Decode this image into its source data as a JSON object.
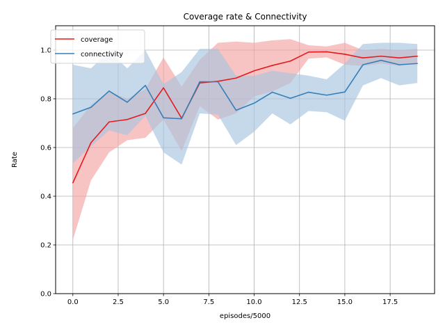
{
  "chart_data": {
    "type": "line",
    "title": "Coverage rate & Connectivity",
    "xlabel": "episodes/5000",
    "ylabel": "Rate",
    "xlim": [
      -0.95,
      19.95
    ],
    "ylim": [
      0,
      1.1
    ],
    "x_ticks": [
      0.0,
      2.5,
      5.0,
      7.5,
      10.0,
      12.5,
      15.0,
      17.5
    ],
    "x_tick_labels": [
      "0.0",
      "2.5",
      "5.0",
      "7.5",
      "10.0",
      "12.5",
      "15.0",
      "17.5"
    ],
    "y_ticks": [
      0.0,
      0.2,
      0.4,
      0.6,
      0.8,
      1.0
    ],
    "y_tick_labels": [
      "0.0",
      "0.2",
      "0.4",
      "0.6",
      "0.8",
      "1.0"
    ],
    "grid": true,
    "legend_position": "top-left",
    "x": [
      0,
      1,
      2,
      3,
      4,
      5,
      6,
      7,
      8,
      9,
      10,
      11,
      12,
      13,
      14,
      15,
      16,
      17,
      18,
      19
    ],
    "series": [
      {
        "name": "coverage",
        "color": "#e41a1c",
        "band_color": "#f4a3a3",
        "values": [
          0.455,
          0.62,
          0.705,
          0.715,
          0.74,
          0.845,
          0.72,
          0.865,
          0.872,
          0.885,
          0.915,
          0.937,
          0.955,
          0.992,
          0.993,
          0.983,
          0.968,
          0.975,
          0.968,
          0.975
        ],
        "lower": [
          0.22,
          0.465,
          0.58,
          0.63,
          0.64,
          0.715,
          0.585,
          0.77,
          0.715,
          0.74,
          0.81,
          0.83,
          0.865,
          0.965,
          0.97,
          0.94,
          0.935,
          0.945,
          0.935,
          0.945
        ],
        "upper": [
          0.68,
          0.775,
          0.83,
          0.8,
          0.84,
          0.97,
          0.85,
          0.96,
          1.03,
          1.035,
          1.03,
          1.04,
          1.045,
          1.02,
          1.015,
          1.03,
          1.0,
          1.005,
          1.0,
          1.005
        ]
      },
      {
        "name": "connectivity",
        "color": "#377eb8",
        "band_color": "#a7c4de",
        "values": [
          0.738,
          0.765,
          0.832,
          0.786,
          0.855,
          0.722,
          0.718,
          0.87,
          0.87,
          0.753,
          0.782,
          0.827,
          0.802,
          0.827,
          0.815,
          0.828,
          0.94,
          0.958,
          0.94,
          0.945
        ],
        "lower": [
          0.535,
          0.605,
          0.67,
          0.65,
          0.73,
          0.58,
          0.53,
          0.74,
          0.735,
          0.61,
          0.665,
          0.74,
          0.695,
          0.75,
          0.745,
          0.71,
          0.855,
          0.885,
          0.855,
          0.865
        ],
        "upper": [
          0.94,
          0.925,
          0.995,
          0.925,
          1.0,
          0.86,
          0.91,
          1.005,
          1.005,
          0.895,
          0.895,
          0.915,
          0.905,
          0.895,
          0.88,
          0.945,
          1.025,
          1.03,
          1.03,
          1.025
        ]
      }
    ]
  }
}
